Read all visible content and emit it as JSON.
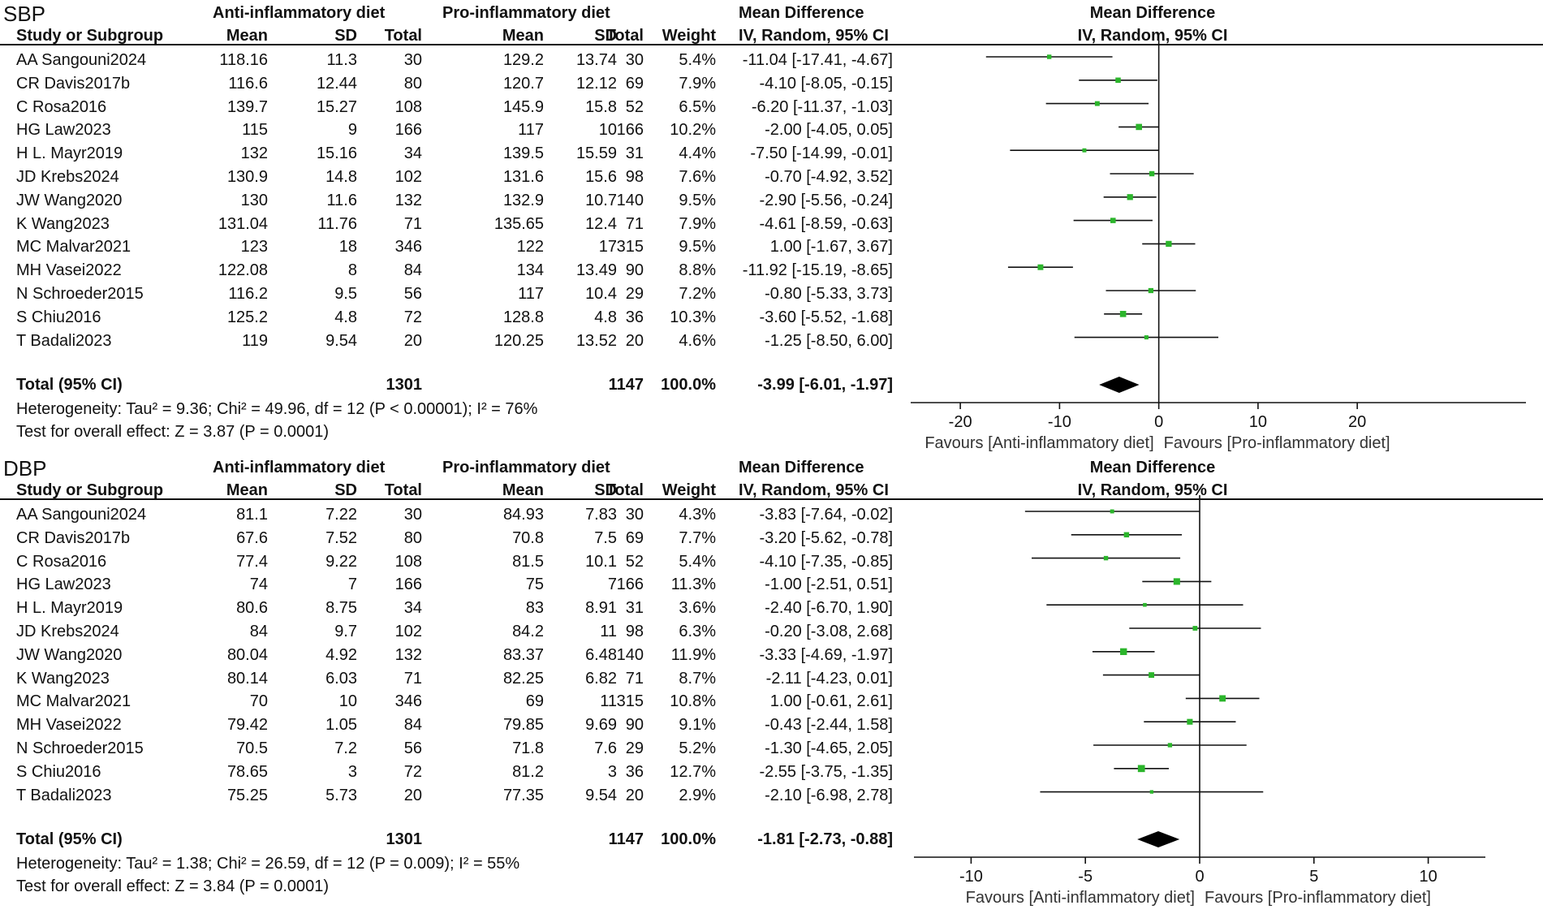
{
  "headers": {
    "study": "Study or Subgroup",
    "anti_group": "Anti-inflammatory diet",
    "pro_group": "Pro-inflammatory diet",
    "mean": "Mean",
    "sd": "SD",
    "total": "Total",
    "weight": "Weight",
    "md": "Mean Difference",
    "md_method": "IV, Random, 95% CI"
  },
  "chart_data": [
    {
      "type": "forest",
      "title": "SBP",
      "plot_title": "Mean Difference",
      "plot_subtitle": "IV, Random, 95% CI",
      "xlim": [
        -25,
        37
      ],
      "ticks": [
        -20,
        -10,
        0,
        10,
        20
      ],
      "tick_labels": [
        "-20",
        "-10",
        "0",
        "10",
        "20"
      ],
      "favours_left": "Favours [Anti-inflammatory diet]",
      "favours_right": "Favours [Pro-inflammatory diet]",
      "studies": [
        {
          "name": "AA Sangouni2024",
          "m1": "118.16",
          "sd1": "11.3",
          "n1": "30",
          "m2": "129.2",
          "sd2": "13.74",
          "n2": "30",
          "weight": "5.4%",
          "ci_text": "-11.04 [-17.41, -4.67]",
          "md": -11.04,
          "lo": -17.41,
          "hi": -4.67
        },
        {
          "name": "CR Davis2017b",
          "m1": "116.6",
          "sd1": "12.44",
          "n1": "80",
          "m2": "120.7",
          "sd2": "12.12",
          "n2": "69",
          "weight": "7.9%",
          "ci_text": "-4.10 [-8.05, -0.15]",
          "md": -4.1,
          "lo": -8.05,
          "hi": -0.15
        },
        {
          "name": "C Rosa2016",
          "m1": "139.7",
          "sd1": "15.27",
          "n1": "108",
          "m2": "145.9",
          "sd2": "15.8",
          "n2": "52",
          "weight": "6.5%",
          "ci_text": "-6.20 [-11.37, -1.03]",
          "md": -6.2,
          "lo": -11.37,
          "hi": -1.03
        },
        {
          "name": "HG Law2023",
          "m1": "115",
          "sd1": "9",
          "n1": "166",
          "m2": "117",
          "sd2": "10",
          "n2": "166",
          "weight": "10.2%",
          "ci_text": "-2.00 [-4.05, 0.05]",
          "md": -2.0,
          "lo": -4.05,
          "hi": 0.05
        },
        {
          "name": "H L. Mayr2019",
          "m1": "132",
          "sd1": "15.16",
          "n1": "34",
          "m2": "139.5",
          "sd2": "15.59",
          "n2": "31",
          "weight": "4.4%",
          "ci_text": "-7.50 [-14.99, -0.01]",
          "md": -7.5,
          "lo": -14.99,
          "hi": -0.01
        },
        {
          "name": "JD Krebs2024",
          "m1": "130.9",
          "sd1": "14.8",
          "n1": "102",
          "m2": "131.6",
          "sd2": "15.6",
          "n2": "98",
          "weight": "7.6%",
          "ci_text": "-0.70 [-4.92, 3.52]",
          "md": -0.7,
          "lo": -4.92,
          "hi": 3.52
        },
        {
          "name": "JW Wang2020",
          "m1": "130",
          "sd1": "11.6",
          "n1": "132",
          "m2": "132.9",
          "sd2": "10.7",
          "n2": "140",
          "weight": "9.5%",
          "ci_text": "-2.90 [-5.56, -0.24]",
          "md": -2.9,
          "lo": -5.56,
          "hi": -0.24
        },
        {
          "name": "K Wang2023",
          "m1": "131.04",
          "sd1": "11.76",
          "n1": "71",
          "m2": "135.65",
          "sd2": "12.4",
          "n2": "71",
          "weight": "7.9%",
          "ci_text": "-4.61 [-8.59, -0.63]",
          "md": -4.61,
          "lo": -8.59,
          "hi": -0.63
        },
        {
          "name": "MC Malvar2021",
          "m1": "123",
          "sd1": "18",
          "n1": "346",
          "m2": "122",
          "sd2": "17",
          "n2": "315",
          "weight": "9.5%",
          "ci_text": "1.00 [-1.67, 3.67]",
          "md": 1.0,
          "lo": -1.67,
          "hi": 3.67
        },
        {
          "name": "MH Vasei2022",
          "m1": "122.08",
          "sd1": "8",
          "n1": "84",
          "m2": "134",
          "sd2": "13.49",
          "n2": "90",
          "weight": "8.8%",
          "ci_text": "-11.92 [-15.19, -8.65]",
          "md": -11.92,
          "lo": -15.19,
          "hi": -8.65
        },
        {
          "name": "N Schroeder2015",
          "m1": "116.2",
          "sd1": "9.5",
          "n1": "56",
          "m2": "117",
          "sd2": "10.4",
          "n2": "29",
          "weight": "7.2%",
          "ci_text": "-0.80 [-5.33, 3.73]",
          "md": -0.8,
          "lo": -5.33,
          "hi": 3.73
        },
        {
          "name": "S Chiu2016",
          "m1": "125.2",
          "sd1": "4.8",
          "n1": "72",
          "m2": "128.8",
          "sd2": "4.8",
          "n2": "36",
          "weight": "10.3%",
          "ci_text": "-3.60 [-5.52, -1.68]",
          "md": -3.6,
          "lo": -5.52,
          "hi": -1.68
        },
        {
          "name": "T Badali2023",
          "m1": "119",
          "sd1": "9.54",
          "n1": "20",
          "m2": "120.25",
          "sd2": "13.52",
          "n2": "20",
          "weight": "4.6%",
          "ci_text": "-1.25 [-8.50, 6.00]",
          "md": -1.25,
          "lo": -8.5,
          "hi": 6.0
        }
      ],
      "total": {
        "label": "Total (95% CI)",
        "n1": "1301",
        "n2": "1147",
        "weight": "100.0%",
        "ci_text": "-3.99 [-6.01, -1.97]",
        "md": -3.99,
        "lo": -6.01,
        "hi": -1.97
      },
      "heterogeneity": "Heterogeneity: Tau² = 9.36; Chi² = 49.96, df = 12 (P < 0.00001); I² = 76%",
      "overall_effect": "Test for overall effect: Z = 3.87 (P = 0.0001)"
    },
    {
      "type": "forest",
      "title": "DBP",
      "plot_title": "Mean Difference",
      "plot_subtitle": "IV, Random, 95% CI",
      "xlim": [
        -12.5,
        12.5
      ],
      "ticks": [
        -10,
        -5,
        0,
        5,
        10
      ],
      "tick_labels": [
        "-10",
        "-5",
        "0",
        "5",
        "10"
      ],
      "favours_left": "Favours [Anti-inflammatory diet]",
      "favours_right": "Favours [Pro-inflammatory diet]",
      "studies": [
        {
          "name": "AA Sangouni2024",
          "m1": "81.1",
          "sd1": "7.22",
          "n1": "30",
          "m2": "84.93",
          "sd2": "7.83",
          "n2": "30",
          "weight": "4.3%",
          "ci_text": "-3.83 [-7.64, -0.02]",
          "md": -3.83,
          "lo": -7.64,
          "hi": -0.02
        },
        {
          "name": "CR Davis2017b",
          "m1": "67.6",
          "sd1": "7.52",
          "n1": "80",
          "m2": "70.8",
          "sd2": "7.5",
          "n2": "69",
          "weight": "7.7%",
          "ci_text": "-3.20 [-5.62, -0.78]",
          "md": -3.2,
          "lo": -5.62,
          "hi": -0.78
        },
        {
          "name": "C Rosa2016",
          "m1": "77.4",
          "sd1": "9.22",
          "n1": "108",
          "m2": "81.5",
          "sd2": "10.1",
          "n2": "52",
          "weight": "5.4%",
          "ci_text": "-4.10 [-7.35, -0.85]",
          "md": -4.1,
          "lo": -7.35,
          "hi": -0.85
        },
        {
          "name": "HG Law2023",
          "m1": "74",
          "sd1": "7",
          "n1": "166",
          "m2": "75",
          "sd2": "7",
          "n2": "166",
          "weight": "11.3%",
          "ci_text": "-1.00 [-2.51, 0.51]",
          "md": -1.0,
          "lo": -2.51,
          "hi": 0.51
        },
        {
          "name": "H L. Mayr2019",
          "m1": "80.6",
          "sd1": "8.75",
          "n1": "34",
          "m2": "83",
          "sd2": "8.91",
          "n2": "31",
          "weight": "3.6%",
          "ci_text": "-2.40 [-6.70, 1.90]",
          "md": -2.4,
          "lo": -6.7,
          "hi": 1.9
        },
        {
          "name": "JD Krebs2024",
          "m1": "84",
          "sd1": "9.7",
          "n1": "102",
          "m2": "84.2",
          "sd2": "11",
          "n2": "98",
          "weight": "6.3%",
          "ci_text": "-0.20 [-3.08, 2.68]",
          "md": -0.2,
          "lo": -3.08,
          "hi": 2.68
        },
        {
          "name": "JW Wang2020",
          "m1": "80.04",
          "sd1": "4.92",
          "n1": "132",
          "m2": "83.37",
          "sd2": "6.48",
          "n2": "140",
          "weight": "11.9%",
          "ci_text": "-3.33 [-4.69, -1.97]",
          "md": -3.33,
          "lo": -4.69,
          "hi": -1.97
        },
        {
          "name": "K Wang2023",
          "m1": "80.14",
          "sd1": "6.03",
          "n1": "71",
          "m2": "82.25",
          "sd2": "6.82",
          "n2": "71",
          "weight": "8.7%",
          "ci_text": "-2.11 [-4.23, 0.01]",
          "md": -2.11,
          "lo": -4.23,
          "hi": 0.01
        },
        {
          "name": "MC Malvar2021",
          "m1": "70",
          "sd1": "10",
          "n1": "346",
          "m2": "69",
          "sd2": "11",
          "n2": "315",
          "weight": "10.8%",
          "ci_text": "1.00 [-0.61, 2.61]",
          "md": 1.0,
          "lo": -0.61,
          "hi": 2.61
        },
        {
          "name": "MH Vasei2022",
          "m1": "79.42",
          "sd1": "1.05",
          "n1": "84",
          "m2": "79.85",
          "sd2": "9.69",
          "n2": "90",
          "weight": "9.1%",
          "ci_text": "-0.43 [-2.44, 1.58]",
          "md": -0.43,
          "lo": -2.44,
          "hi": 1.58
        },
        {
          "name": "N Schroeder2015",
          "m1": "70.5",
          "sd1": "7.2",
          "n1": "56",
          "m2": "71.8",
          "sd2": "7.6",
          "n2": "29",
          "weight": "5.2%",
          "ci_text": "-1.30 [-4.65, 2.05]",
          "md": -1.3,
          "lo": -4.65,
          "hi": 2.05
        },
        {
          "name": "S Chiu2016",
          "m1": "78.65",
          "sd1": "3",
          "n1": "72",
          "m2": "81.2",
          "sd2": "3",
          "n2": "36",
          "weight": "12.7%",
          "ci_text": "-2.55 [-3.75, -1.35]",
          "md": -2.55,
          "lo": -3.75,
          "hi": -1.35
        },
        {
          "name": "T Badali2023",
          "m1": "75.25",
          "sd1": "5.73",
          "n1": "20",
          "m2": "77.35",
          "sd2": "9.54",
          "n2": "20",
          "weight": "2.9%",
          "ci_text": "-2.10 [-6.98, 2.78]",
          "md": -2.1,
          "lo": -6.98,
          "hi": 2.78
        }
      ],
      "total": {
        "label": "Total (95% CI)",
        "n1": "1301",
        "n2": "1147",
        "weight": "100.0%",
        "ci_text": "-1.81 [-2.73, -0.88]",
        "md": -1.81,
        "lo": -2.73,
        "hi": -0.88
      },
      "heterogeneity": "Heterogeneity: Tau² = 1.38; Chi² = 26.59, df = 12 (P = 0.009); I² = 55%",
      "overall_effect": "Test for overall effect: Z = 3.84 (P = 0.0001)"
    }
  ],
  "colors": {
    "point": "#2bb52b",
    "line": "#111111",
    "diamond": "#000000"
  }
}
